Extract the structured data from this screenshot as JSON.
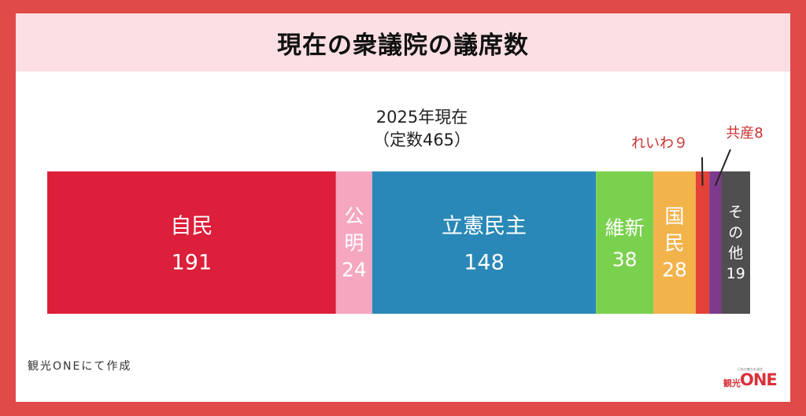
{
  "header": {
    "title": "現在の衆議院の議席数"
  },
  "chart_data": {
    "type": "bar",
    "title": "2025年現在",
    "subtitle": "（定数465）",
    "total": 465,
    "categories": [
      "自民",
      "公明",
      "立憲民主",
      "維新",
      "国民",
      "れいわ",
      "共産",
      "その他"
    ],
    "values": [
      191,
      24,
      148,
      38,
      28,
      9,
      8,
      19
    ],
    "colors": [
      "#dc1f3a",
      "#f6a7c0",
      "#2a88b8",
      "#7ad14e",
      "#f2b34b",
      "#e44236",
      "#7e3a8c",
      "#4f4f4f"
    ],
    "annotations": [
      {
        "text": "れいわ９",
        "color": "#c8322f"
      },
      {
        "text": "共産8",
        "color": "#c8322f"
      }
    ]
  },
  "footer": {
    "credit": "観光ONEにて作成",
    "logo_text": "ONE",
    "logo_kanji": "観光",
    "logo_sub": "日本の魅力を発信"
  }
}
